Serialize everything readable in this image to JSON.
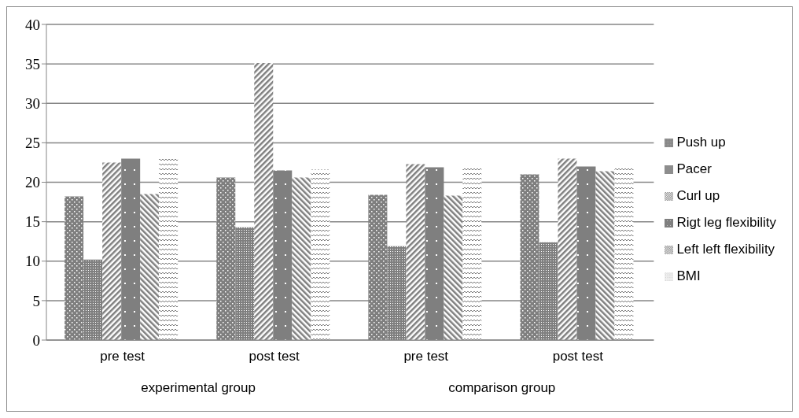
{
  "chart_data": {
    "type": "bar",
    "categories": [
      "pre test",
      "post test",
      "pre test",
      "post test"
    ],
    "series": [
      {
        "name": "Push up",
        "color": "#7f7f7f",
        "values": [
          18.2,
          20.6,
          18.4,
          21.0
        ]
      },
      {
        "name": "Pacer",
        "color": "#7f7f7f",
        "values": [
          10.2,
          14.3,
          11.9,
          12.4
        ]
      },
      {
        "name": "Curl up",
        "color": "#7f7f7f",
        "values": [
          22.5,
          35.1,
          22.3,
          23.0
        ]
      },
      {
        "name": "Rigt leg flexibility",
        "color": "#7f7f7f",
        "values": [
          23.0,
          21.5,
          21.9,
          22.0
        ]
      },
      {
        "name": "Left left flexibility",
        "color": "#7f7f7f",
        "values": [
          18.5,
          20.6,
          18.3,
          21.4
        ]
      },
      {
        "name": "BMI",
        "color": "#7f7f7f",
        "values": [
          23.0,
          21.6,
          21.9,
          21.9
        ]
      }
    ],
    "annotations": [
      "experimental group",
      "comparison group"
    ],
    "ylim": [
      0,
      40
    ],
    "yticks": [
      0,
      5,
      10,
      15,
      20,
      25,
      30,
      35,
      40
    ],
    "grid": "y",
    "legend": "right"
  }
}
